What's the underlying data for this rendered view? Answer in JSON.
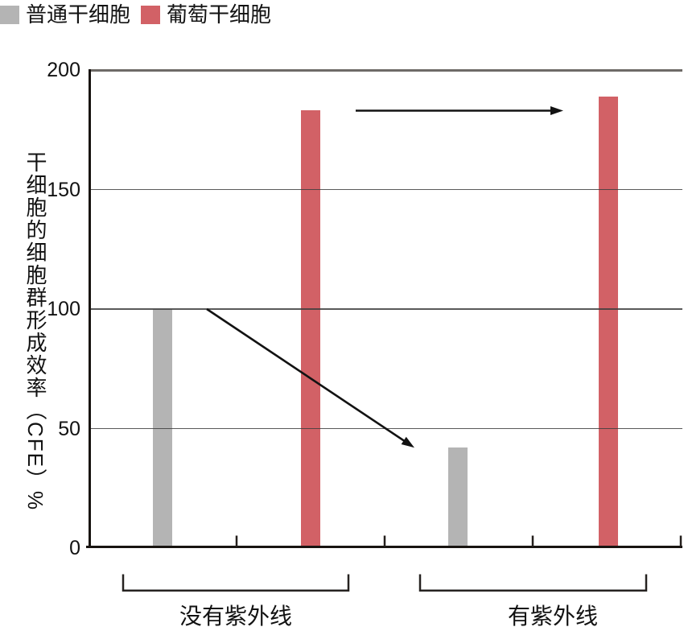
{
  "legend": {
    "items": [
      {
        "label": "普通干细胞",
        "color": "#b4b4b4"
      },
      {
        "label": "葡萄干细胞",
        "color": "#d26166"
      }
    ]
  },
  "chart_data": {
    "type": "bar",
    "title": "",
    "ylabel": "干细胞的细胞群形成效率（CFE）%",
    "ylim": [
      0,
      200
    ],
    "yticks": [
      0,
      50,
      100,
      150,
      200
    ],
    "grid": true,
    "legend_position": "top-left",
    "groups": [
      {
        "label": "没有紫外线"
      },
      {
        "label": "有紫外线"
      }
    ],
    "series": [
      {
        "name": "普通干细胞",
        "color": "#b4b4b4",
        "values": [
          100,
          42
        ]
      },
      {
        "name": "葡萄干细胞",
        "color": "#d26166",
        "values": [
          183,
          189
        ]
      }
    ],
    "annotations": [
      {
        "type": "arrow",
        "series": "葡萄干细胞",
        "from_group": "没有紫外线",
        "from_value": 183,
        "to_group": "有紫外线",
        "to_value": 183
      },
      {
        "type": "arrow",
        "series": "普通干细胞",
        "from_group": "没有紫外线",
        "from_value": 100,
        "to_group": "有紫外线",
        "to_value": 42
      }
    ]
  }
}
